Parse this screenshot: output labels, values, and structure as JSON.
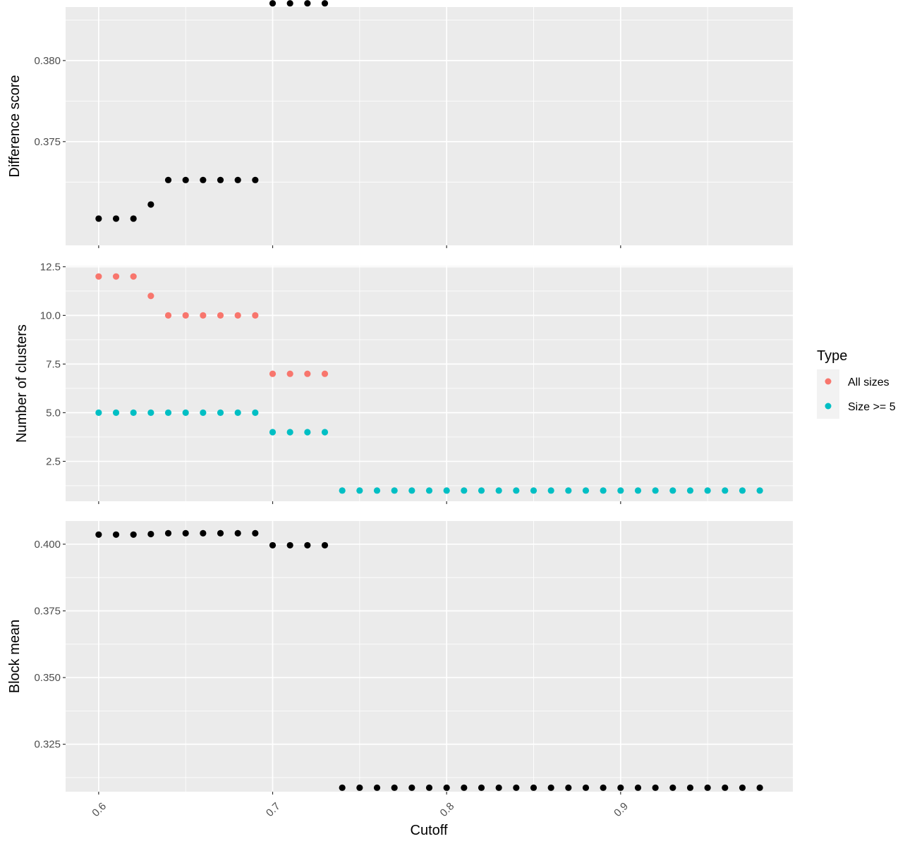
{
  "chart_data": [
    {
      "type": "scatter",
      "panel": "top",
      "ylabel": "Difference score",
      "xlim": [
        0.581,
        0.999
      ],
      "ylim": [
        0.3686,
        0.3833
      ],
      "yticks": [
        0.375,
        0.38
      ],
      "ytick_labels": [
        "0.375",
        "0.380"
      ],
      "series": [
        {
          "color": "#000000",
          "points": [
            [
              0.6,
              0.37025
            ],
            [
              0.61,
              0.37025
            ],
            [
              0.62,
              0.37025
            ],
            [
              0.63,
              0.37112
            ],
            [
              0.64,
              0.37263
            ],
            [
              0.65,
              0.37263
            ],
            [
              0.66,
              0.37263
            ],
            [
              0.67,
              0.37263
            ],
            [
              0.68,
              0.37263
            ],
            [
              0.69,
              0.37263
            ],
            [
              0.7,
              0.38353
            ],
            [
              0.71,
              0.38353
            ],
            [
              0.72,
              0.38353
            ],
            [
              0.73,
              0.38353
            ]
          ]
        }
      ]
    },
    {
      "type": "scatter",
      "panel": "middle",
      "ylabel": "Number of clusters",
      "xlim": [
        0.581,
        0.999
      ],
      "ylim": [
        0.45,
        12.55
      ],
      "yticks": [
        2.5,
        5.0,
        7.5,
        10.0,
        12.5
      ],
      "ytick_labels": [
        "2.5",
        "5.0",
        "7.5",
        "10.0",
        "12.5"
      ],
      "series": [
        {
          "name": "All sizes",
          "color": "#F8766D",
          "points": [
            [
              0.6,
              12
            ],
            [
              0.61,
              12
            ],
            [
              0.62,
              12
            ],
            [
              0.63,
              11
            ],
            [
              0.64,
              10
            ],
            [
              0.65,
              10
            ],
            [
              0.66,
              10
            ],
            [
              0.67,
              10
            ],
            [
              0.68,
              10
            ],
            [
              0.69,
              10
            ],
            [
              0.7,
              7
            ],
            [
              0.71,
              7
            ],
            [
              0.72,
              7
            ],
            [
              0.73,
              7
            ]
          ]
        },
        {
          "name": "Size >= 5",
          "color": "#00BFC4",
          "points": [
            [
              0.6,
              5
            ],
            [
              0.61,
              5
            ],
            [
              0.62,
              5
            ],
            [
              0.63,
              5
            ],
            [
              0.64,
              5
            ],
            [
              0.65,
              5
            ],
            [
              0.66,
              5
            ],
            [
              0.67,
              5
            ],
            [
              0.68,
              5
            ],
            [
              0.69,
              5
            ],
            [
              0.7,
              4
            ],
            [
              0.71,
              4
            ],
            [
              0.72,
              4
            ],
            [
              0.73,
              4
            ],
            [
              0.74,
              1
            ],
            [
              0.75,
              1
            ],
            [
              0.76,
              1
            ],
            [
              0.77,
              1
            ],
            [
              0.78,
              1
            ],
            [
              0.79,
              1
            ],
            [
              0.8,
              1
            ],
            [
              0.81,
              1
            ],
            [
              0.82,
              1
            ],
            [
              0.83,
              1
            ],
            [
              0.84,
              1
            ],
            [
              0.85,
              1
            ],
            [
              0.86,
              1
            ],
            [
              0.87,
              1
            ],
            [
              0.88,
              1
            ],
            [
              0.89,
              1
            ],
            [
              0.9,
              1
            ],
            [
              0.91,
              1
            ],
            [
              0.92,
              1
            ],
            [
              0.93,
              1
            ],
            [
              0.94,
              1
            ],
            [
              0.95,
              1
            ],
            [
              0.96,
              1
            ],
            [
              0.97,
              1
            ],
            [
              0.98,
              1
            ]
          ]
        }
      ]
    },
    {
      "type": "scatter",
      "panel": "bottom",
      "ylabel": "Block mean",
      "xlabel": "Cutoff",
      "xlim": [
        0.581,
        0.999
      ],
      "ylim": [
        0.3072,
        0.4087
      ],
      "yticks": [
        0.325,
        0.35,
        0.375,
        0.4
      ],
      "ytick_labels": [
        "0.325",
        "0.350",
        "0.375",
        "0.400"
      ],
      "series": [
        {
          "color": "#000000",
          "points": [
            [
              0.6,
              0.4036
            ],
            [
              0.61,
              0.4036
            ],
            [
              0.62,
              0.4036
            ],
            [
              0.63,
              0.4038
            ],
            [
              0.64,
              0.4041
            ],
            [
              0.65,
              0.4041
            ],
            [
              0.66,
              0.4041
            ],
            [
              0.67,
              0.4041
            ],
            [
              0.68,
              0.4041
            ],
            [
              0.69,
              0.4041
            ],
            [
              0.7,
              0.3996
            ],
            [
              0.71,
              0.3996
            ],
            [
              0.72,
              0.3996
            ],
            [
              0.73,
              0.3996
            ],
            [
              0.74,
              0.3087
            ],
            [
              0.75,
              0.3087
            ],
            [
              0.76,
              0.3087
            ],
            [
              0.77,
              0.3087
            ],
            [
              0.78,
              0.3087
            ],
            [
              0.79,
              0.3087
            ],
            [
              0.8,
              0.3087
            ],
            [
              0.81,
              0.3087
            ],
            [
              0.82,
              0.3087
            ],
            [
              0.83,
              0.3087
            ],
            [
              0.84,
              0.3087
            ],
            [
              0.85,
              0.3087
            ],
            [
              0.86,
              0.3087
            ],
            [
              0.87,
              0.3087
            ],
            [
              0.88,
              0.3087
            ],
            [
              0.89,
              0.3087
            ],
            [
              0.9,
              0.3087
            ],
            [
              0.91,
              0.3087
            ],
            [
              0.92,
              0.3087
            ],
            [
              0.93,
              0.3087
            ],
            [
              0.94,
              0.3087
            ],
            [
              0.95,
              0.3087
            ],
            [
              0.96,
              0.3087
            ],
            [
              0.97,
              0.3087
            ],
            [
              0.98,
              0.3087
            ]
          ]
        }
      ]
    }
  ],
  "x_axis": {
    "label": "Cutoff",
    "ticks": [
      0.6,
      0.7,
      0.8,
      0.9
    ],
    "tick_labels": [
      "0.6",
      "0.7",
      "0.8",
      "0.9"
    ],
    "minor_ticks": [
      0.65,
      0.75,
      0.85,
      0.95
    ]
  },
  "legend": {
    "title": "Type",
    "placement": "right",
    "items": [
      {
        "label": "All sizes",
        "color": "#F8766D"
      },
      {
        "label": "Size >= 5",
        "color": "#00BFC4"
      }
    ]
  },
  "style": {
    "panel_background": "#EBEBEB",
    "grid_color": "#FFFFFF",
    "tick_color": "#333333",
    "grid": true
  }
}
